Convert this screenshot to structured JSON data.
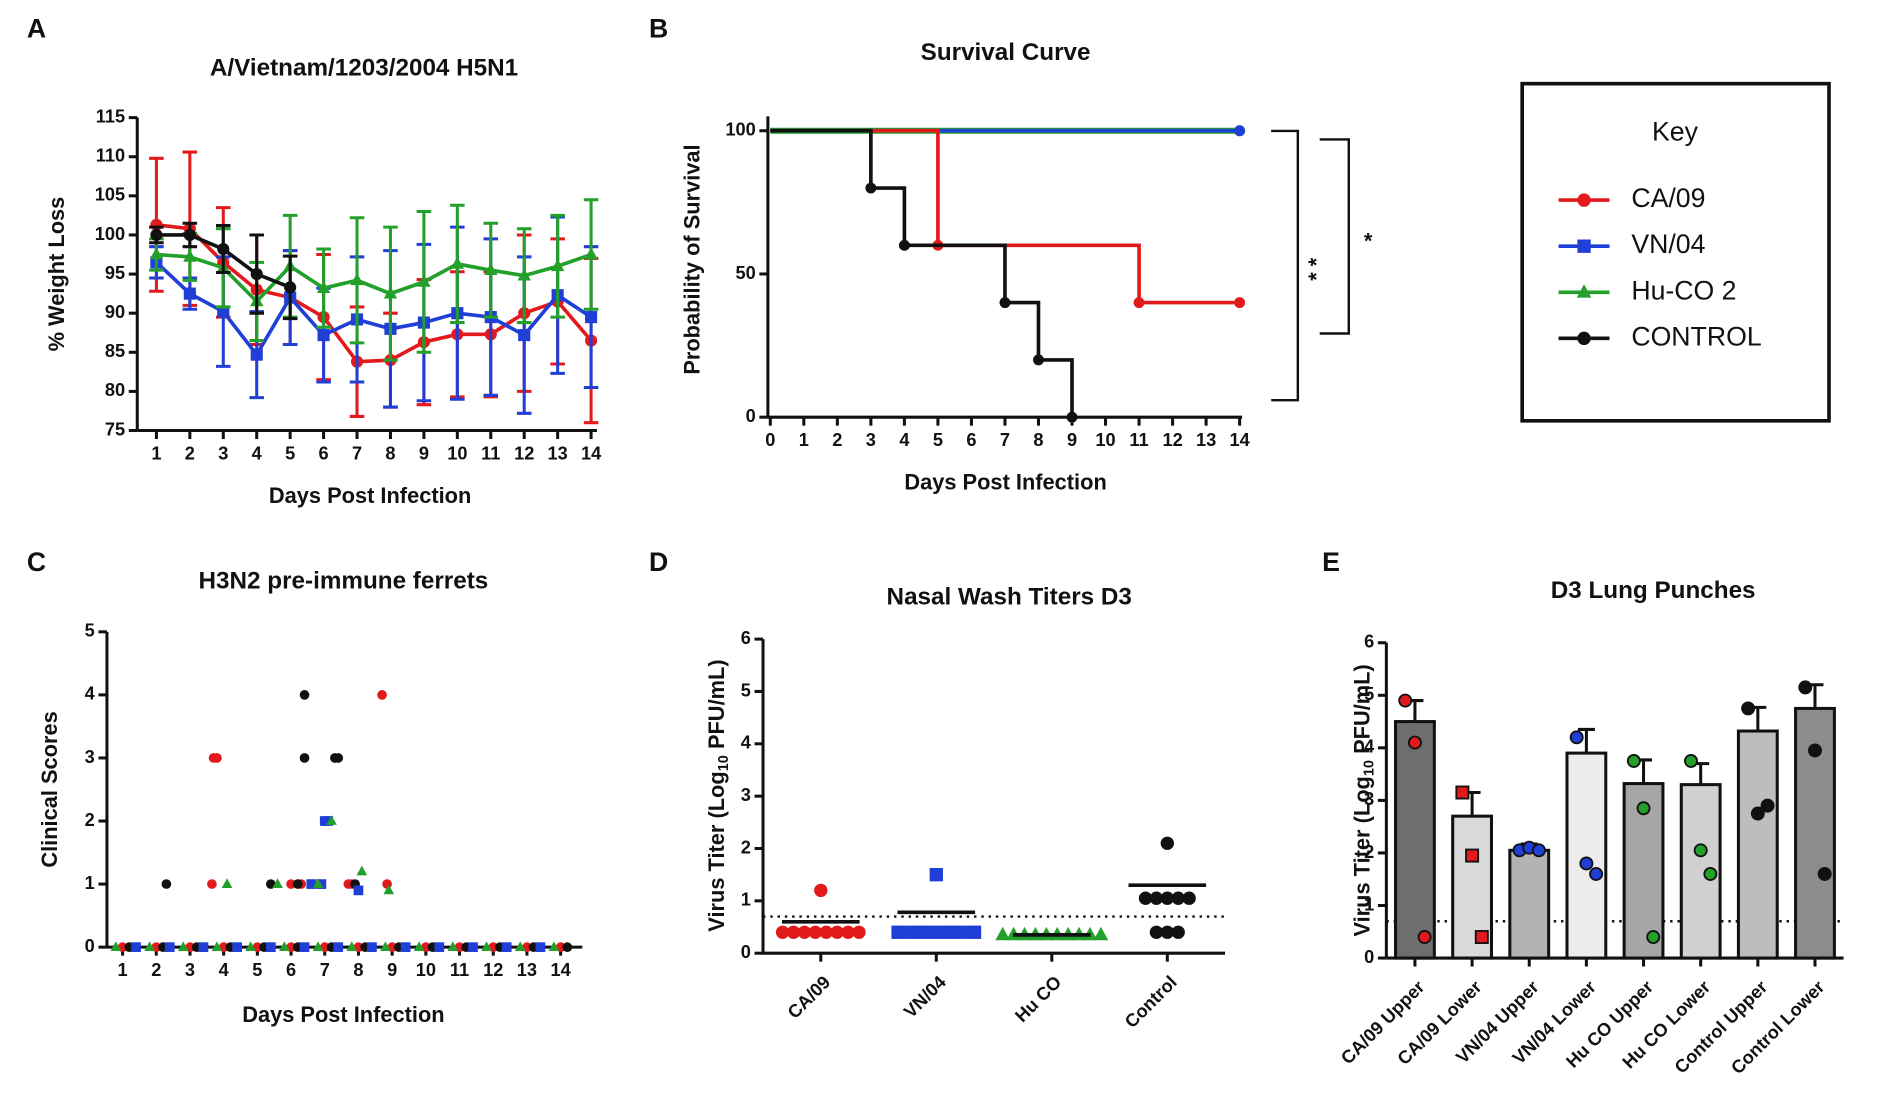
{
  "key": {
    "title": "Key"
  },
  "chart_data": [
    {
      "type": "line",
      "panel": "A",
      "title": "A/Vietnam/1203/2004 H5N1",
      "xlabel": "Days Post Infection",
      "ylabel": "% Weight Loss",
      "x": [
        1,
        2,
        3,
        4,
        5,
        6,
        7,
        8,
        9,
        10,
        11,
        12,
        13,
        14
      ],
      "xlim": [
        0.5,
        14.5
      ],
      "xticks": [
        1,
        2,
        3,
        4,
        5,
        6,
        7,
        8,
        9,
        10,
        11,
        12,
        13,
        14
      ],
      "ylim": [
        75,
        115
      ],
      "yticks": [
        75,
        80,
        85,
        90,
        95,
        100,
        105,
        110,
        115
      ],
      "series": [
        {
          "name": "CA/09",
          "color": "#e31a1c",
          "marker": "circle",
          "values": [
            101.3,
            100.8,
            96.5,
            93,
            92,
            89.5,
            83.8,
            84,
            86.3,
            87.3,
            87.3,
            90,
            91.5,
            86.5
          ],
          "errors": [
            8.5,
            9.8,
            7,
            7,
            6,
            8,
            7,
            6,
            8,
            8,
            8,
            10,
            8,
            10.5
          ]
        },
        {
          "name": "VN/04",
          "color": "#1f3fd6",
          "marker": "square",
          "values": [
            96.5,
            92.5,
            90.2,
            84.7,
            92,
            87.2,
            89.2,
            88,
            88.8,
            90,
            89.5,
            87.2,
            92.3,
            89.5
          ],
          "errors": [
            2,
            2,
            7,
            5.5,
            6,
            6,
            8,
            10,
            10,
            11,
            10,
            10,
            10,
            9
          ]
        },
        {
          "name": "Hu-CO 2",
          "color": "#22a02a",
          "marker": "triangle",
          "values": [
            97.5,
            97.2,
            95.8,
            91.5,
            96,
            93.2,
            94.2,
            92.5,
            94,
            96.3,
            95.5,
            94.8,
            96,
            97.5
          ],
          "errors": [
            2,
            3,
            5,
            5,
            6.5,
            5,
            8,
            8.5,
            9,
            7.5,
            6,
            6,
            6.5,
            7
          ]
        },
        {
          "name": "CONTROL",
          "color": "#111111",
          "marker": "circle",
          "values": [
            100,
            100,
            98.2,
            95,
            93.3,
            null,
            null,
            null,
            null,
            null,
            null,
            null,
            null,
            null
          ],
          "errors": [
            1,
            1.5,
            3,
            5,
            4,
            null,
            null,
            null,
            null,
            null,
            null,
            null,
            null,
            null
          ]
        }
      ]
    },
    {
      "type": "step",
      "panel": "B",
      "title": "Survival Curve",
      "xlabel": "Days Post Infection",
      "ylabel": "Probability of Survival",
      "xlim": [
        0,
        14
      ],
      "xticks": [
        0,
        1,
        2,
        3,
        4,
        5,
        6,
        7,
        8,
        9,
        10,
        11,
        12,
        13,
        14
      ],
      "ylim": [
        0,
        105
      ],
      "yticks": [
        0,
        50,
        100
      ],
      "annotations": [
        "* *",
        "*"
      ],
      "series": [
        {
          "name": "Hu-CO 2",
          "color": "#22a02a",
          "x": [
            0,
            14
          ],
          "values": [
            100,
            100
          ]
        },
        {
          "name": "VN/04",
          "color": "#1f3fd6",
          "x": [
            0,
            14
          ],
          "values": [
            100,
            100
          ]
        },
        {
          "name": "CA/09",
          "color": "#e31a1c",
          "x": [
            0,
            5,
            11,
            14
          ],
          "values": [
            100,
            60,
            40,
            40
          ]
        },
        {
          "name": "CONTROL",
          "color": "#111111",
          "x": [
            0,
            3,
            4,
            7,
            8,
            9
          ],
          "values": [
            100,
            80,
            60,
            40,
            20,
            0
          ]
        }
      ]
    },
    {
      "type": "scatter",
      "panel": "C",
      "title": "H3N2 pre-immune ferrets",
      "xlabel": "Days Post Infection",
      "ylabel": "Clinical  Scores",
      "xlim": [
        0.5,
        14.5
      ],
      "xticks": [
        1,
        2,
        3,
        4,
        5,
        6,
        7,
        8,
        9,
        10,
        11,
        12,
        13,
        14
      ],
      "ylim": [
        0,
        5
      ],
      "yticks": [
        0,
        1,
        2,
        3,
        4,
        5
      ],
      "series": [
        {
          "name": "CA/09",
          "color": "#e31a1c",
          "marker": "circle",
          "x": [
            3.7,
            3.8,
            3.65,
            6.0,
            6.3,
            7.7,
            7.8,
            8.7,
            8.85,
            1,
            2,
            3,
            4,
            5,
            6,
            7,
            8,
            9,
            10,
            11,
            12,
            13,
            14
          ],
          "values": [
            3,
            3,
            1,
            1,
            1,
            1,
            1,
            4,
            1,
            0,
            0,
            0,
            0,
            0,
            0,
            0,
            0,
            0,
            0,
            0,
            0,
            0,
            0
          ]
        },
        {
          "name": "CONTROL",
          "color": "#111111",
          "marker": "circle",
          "x": [
            2.3,
            5.4,
            6.4,
            6.4,
            6.2,
            7.3,
            7.4,
            7.9,
            1.2,
            2.2,
            3.2,
            4.2,
            5.2,
            6.2,
            7.2,
            8.2,
            9.2,
            10.2,
            11.2,
            12.2,
            13.2,
            14.2
          ],
          "values": [
            1,
            1,
            4,
            3,
            1,
            3,
            3,
            1,
            0,
            0,
            0,
            0,
            0,
            0,
            0,
            0,
            0,
            0,
            0,
            0,
            0,
            0
          ]
        },
        {
          "name": "VN/04",
          "color": "#1f3fd6",
          "marker": "square",
          "x": [
            6.6,
            6.9,
            7.0,
            7.1,
            8.0,
            1.4,
            2.4,
            3.4,
            4.4,
            5.4,
            6.4,
            7.4,
            8.4,
            9.4,
            10.4,
            11.4,
            12.4,
            13.4
          ],
          "values": [
            1,
            1,
            2,
            2,
            0.9,
            0,
            0,
            0,
            0,
            0,
            0,
            0,
            0,
            0,
            0,
            0,
            0,
            0
          ]
        },
        {
          "name": "Hu-CO 2",
          "color": "#22a02a",
          "marker": "triangle",
          "x": [
            4.1,
            5.6,
            6.8,
            7.2,
            8.1,
            8.9,
            0.8,
            1.8,
            2.8,
            3.8,
            4.8,
            5.8,
            6.8,
            7.8,
            8.8,
            9.8,
            10.8,
            11.8,
            12.8,
            13.8
          ],
          "values": [
            1,
            1,
            1,
            2,
            1.2,
            0.9,
            0,
            0,
            0,
            0,
            0,
            0,
            0,
            0,
            0,
            0,
            0,
            0,
            0,
            0
          ]
        }
      ]
    },
    {
      "type": "dot",
      "panel": "D",
      "title": "Nasal Wash Titers D3",
      "ylabel": [
        "Virus Titer (Log",
        "10",
        " PFU/mL)"
      ],
      "categories": [
        "CA/09",
        "VN/04",
        "Hu CO",
        "Control"
      ],
      "colors": [
        "#e31a1c",
        "#1f3fd6",
        "#22a02a",
        "#111111"
      ],
      "markers": [
        "circle",
        "square",
        "triangle",
        "circle"
      ],
      "points": [
        [
          1.2,
          0.4,
          0.4,
          0.4,
          0.4,
          0.4,
          0.4,
          0.4,
          0.4
        ],
        [
          1.5,
          0.4,
          0.4,
          0.4,
          0.4,
          0.4,
          0.4,
          0.4,
          0.4
        ],
        [
          0.35,
          0.35,
          0.35,
          0.35,
          0.35,
          0.35,
          0.35,
          0.35,
          0.35,
          0.35
        ],
        [
          2.1,
          1.05,
          1.05,
          1.05,
          1.05,
          1.05,
          0.4,
          0.4,
          0.4
        ]
      ],
      "means": [
        0.6,
        0.78,
        0.35,
        1.3
      ],
      "threshold": 0.7,
      "ylim": [
        0,
        6
      ],
      "yticks": [
        0,
        1,
        2,
        3,
        4,
        5,
        6
      ]
    },
    {
      "type": "bar",
      "panel": "E",
      "title": "D3 Lung Punches",
      "ylabel": [
        "Virus Titer (Log",
        "10",
        " PFU/mL)"
      ],
      "categories": [
        "CA/09 Upper",
        "CA/09 Lower",
        "VN/04 Upper",
        "VN/04 Lower",
        "Hu CO Upper",
        "Hu CO Lower",
        "Control Upper",
        "Control Lower"
      ],
      "colors": [
        "#6e6e6e",
        "#d9d9d9",
        "#b3b3b3",
        "#ececec",
        "#a6a6a6",
        "#d0d0d0",
        "#bdbdbd",
        "#8c8c8c"
      ],
      "point_colors": [
        "#e31a1c",
        "#e31a1c",
        "#1f3fd6",
        "#1f3fd6",
        "#22a02a",
        "#22a02a",
        "#111111",
        "#111111"
      ],
      "values": [
        4.5,
        2.7,
        2.05,
        3.9,
        3.32,
        3.3,
        4.32,
        4.75
      ],
      "errors": [
        0.4,
        0.45,
        0.12,
        0.45,
        0.45,
        0.4,
        0.45,
        0.45
      ],
      "points": [
        [
          4.9,
          4.1,
          0.4
        ],
        [
          3.15,
          1.95,
          0.4
        ],
        [
          2.05,
          2.1,
          2.05
        ],
        [
          4.2,
          1.8,
          1.6
        ],
        [
          3.75,
          2.85,
          0.4
        ],
        [
          3.75,
          2.05,
          1.6
        ],
        [
          4.75,
          2.75,
          2.9
        ],
        [
          5.15,
          3.95,
          1.6
        ]
      ],
      "threshold": 0.7,
      "ylim": [
        0,
        6
      ],
      "yticks": [
        0,
        1,
        2,
        3,
        4,
        5,
        6
      ]
    }
  ]
}
